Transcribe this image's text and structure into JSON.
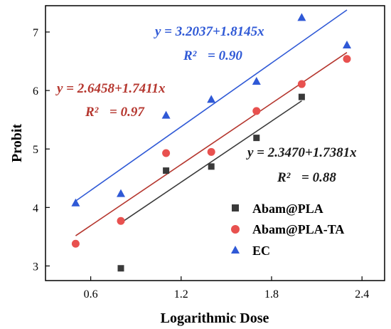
{
  "chart_data": {
    "type": "scatter",
    "xlabel": "Logarithmic Dose",
    "ylabel": "Probit",
    "xlim": [
      0.3,
      2.55
    ],
    "ylim": [
      2.75,
      7.45
    ],
    "x_ticks": [
      "0.6",
      "1.2",
      "1.8",
      "2.4"
    ],
    "y_ticks": [
      "3",
      "4",
      "5",
      "6",
      "7"
    ],
    "legend_position": "bottom-right",
    "series": [
      {
        "name": "Abam@PLA",
        "marker": "square",
        "color": "#3a3a3a",
        "points": [
          [
            0.8,
            2.96
          ],
          [
            1.1,
            4.63
          ],
          [
            1.4,
            4.7
          ],
          [
            1.7,
            5.19
          ],
          [
            2.0,
            5.89
          ]
        ],
        "fit": {
          "equation": "y = 2.3470+1.7381x",
          "r2_label": "R²",
          "r2_value": "= 0.88",
          "intercept": 2.347,
          "slope": 1.7381,
          "x_range": [
            0.8,
            2.0
          ]
        }
      },
      {
        "name": "Abam@PLA-TA",
        "marker": "circle",
        "color": "#e8514f",
        "line_color": "#b5362e",
        "points": [
          [
            0.5,
            3.38
          ],
          [
            0.8,
            3.77
          ],
          [
            1.1,
            4.93
          ],
          [
            1.4,
            4.95
          ],
          [
            1.7,
            5.65
          ],
          [
            2.0,
            6.11
          ],
          [
            2.3,
            6.54
          ]
        ],
        "fit": {
          "equation": "y = 2.6458+1.7411x",
          "r2_label": "R²",
          "r2_value": "= 0.97",
          "intercept": 2.6458,
          "slope": 1.7411,
          "x_range": [
            0.5,
            2.3
          ]
        }
      },
      {
        "name": "EC",
        "marker": "triangle",
        "color": "#2f59d6",
        "points": [
          [
            0.5,
            4.08
          ],
          [
            0.8,
            4.24
          ],
          [
            1.1,
            5.58
          ],
          [
            1.4,
            5.85
          ],
          [
            1.7,
            6.16
          ],
          [
            2.0,
            7.25
          ],
          [
            2.3,
            6.78
          ]
        ],
        "fit": {
          "equation": "y = 3.2037+1.8145x",
          "r2_label": "R²",
          "r2_value": "= 0.90",
          "intercept": 3.2037,
          "slope": 1.8145,
          "x_range": [
            0.5,
            2.3
          ]
        }
      }
    ]
  }
}
